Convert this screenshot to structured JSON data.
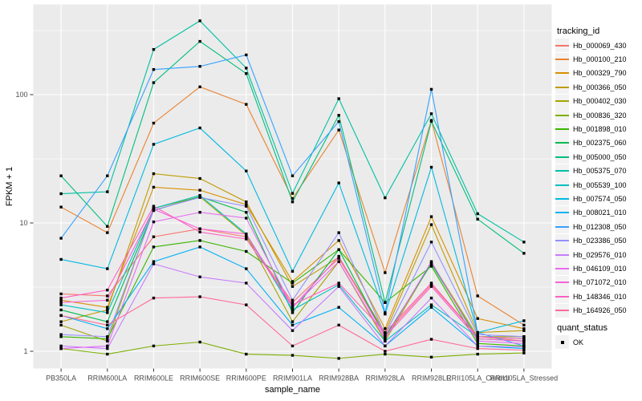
{
  "legend": {
    "tracking_title": "tracking_id",
    "quant_title": "quant_status",
    "quant_items": [
      {
        "label": "OK",
        "marker": "black-square"
      }
    ]
  },
  "chart_data": {
    "type": "line",
    "title": "",
    "xlabel": "sample_name",
    "ylabel": "FPKM + 1",
    "y_scale": "log10",
    "y_ticks": [
      100,
      10,
      1
    ],
    "y_minor": [
      316,
      31.6,
      3.16
    ],
    "ylim": [
      0.85,
      420
    ],
    "grid": true,
    "legend_position": "right",
    "panel_bg": "#EBEBEB",
    "grid_color": "#FFFFFF",
    "tick_color": "#333333",
    "point_shape": "filled-square",
    "point_color": "#000000",
    "categories": [
      "PB350LA",
      "RRIM600LA",
      "RRIM600LE",
      "RRIM600SE",
      "RRIM600PE",
      "RRIM901LA",
      "RRIM928BA",
      "RRIM928LA",
      "RRIM928LE",
      "RRII105LA_Control",
      "RRII105LA_Stressed"
    ],
    "series": [
      {
        "name": "Hb_000069_430",
        "color": "#F8766D",
        "values": [
          2.8,
          2.7,
          7.8,
          9.0,
          7.8,
          2.4,
          5.3,
          1.35,
          3.3,
          1.3,
          1.2
        ]
      },
      {
        "name": "Hb_000100_210",
        "color": "#EA8331",
        "values": [
          13.3,
          8.4,
          60,
          115,
          84,
          15.5,
          53,
          4.1,
          63,
          2.7,
          1.6
        ]
      },
      {
        "name": "Hb_000329_790",
        "color": "#D89000",
        "values": [
          2.5,
          2.2,
          19,
          18,
          13.9,
          3.5,
          7.3,
          1.5,
          11.2,
          1.8,
          1.5
        ]
      },
      {
        "name": "Hb_000366_050",
        "color": "#C09B00",
        "values": [
          1.7,
          2.1,
          24.2,
          22.2,
          14.6,
          3.2,
          5.4,
          1.4,
          9.7,
          1.4,
          1.45
        ]
      },
      {
        "name": "Hb_000402_030",
        "color": "#A3A500",
        "values": [
          1.6,
          1.2,
          13,
          16,
          8,
          1.7,
          5.0,
          1.2,
          4.9,
          1.3,
          1.3
        ]
      },
      {
        "name": "Hb_000836_320",
        "color": "#7CAE00",
        "values": [
          1.05,
          0.95,
          1.1,
          1.18,
          0.95,
          0.93,
          0.88,
          0.95,
          0.9,
          0.95,
          0.97
        ]
      },
      {
        "name": "Hb_001898_010",
        "color": "#39B600",
        "values": [
          1.3,
          1.25,
          6.5,
          7.3,
          6.0,
          3.4,
          6.2,
          2.4,
          4.6,
          1.15,
          1.1
        ]
      },
      {
        "name": "Hb_002375_060",
        "color": "#00BB4E",
        "values": [
          2.1,
          1.7,
          12.5,
          16,
          12.1,
          2.0,
          6.2,
          1.3,
          4.8,
          1.25,
          1.2
        ]
      },
      {
        "name": "Hb_005000_050",
        "color": "#00BF7D",
        "values": [
          23.3,
          9.4,
          124,
          260,
          146,
          14.6,
          69,
          2.4,
          62,
          10.7,
          5.8
        ]
      },
      {
        "name": "Hb_005375_070",
        "color": "#00C1A3",
        "values": [
          16.9,
          17.5,
          225,
          376,
          161,
          17,
          93,
          15.7,
          71,
          11.8,
          7.1
        ]
      },
      {
        "name": "Hb_005539_100",
        "color": "#00BFC4",
        "values": [
          2.3,
          2.0,
          13,
          16.4,
          8.2,
          2.1,
          3.3,
          1.2,
          2.3,
          1.3,
          1.25
        ]
      },
      {
        "name": "Hb_007574_050",
        "color": "#00BAE0",
        "values": [
          5.2,
          4.4,
          41,
          55,
          25.4,
          4.2,
          20.5,
          1.95,
          27.2,
          1.4,
          1.73
        ]
      },
      {
        "name": "Hb_008021_010",
        "color": "#00B0F6",
        "values": [
          1.9,
          1.5,
          5.0,
          6.5,
          4.4,
          1.6,
          2.2,
          1.1,
          2.2,
          1.1,
          1.05
        ]
      },
      {
        "name": "Hb_012308_050",
        "color": "#35A2FF",
        "values": [
          7.6,
          23.3,
          157,
          166,
          204,
          23.3,
          61.7,
          2.0,
          110,
          1.4,
          1.1
        ]
      },
      {
        "name": "Hb_023386_050",
        "color": "#9590FF",
        "values": [
          1.35,
          1.3,
          12.6,
          15.8,
          13.5,
          2.5,
          8.4,
          1.35,
          7.1,
          1.35,
          1.3
        ]
      },
      {
        "name": "Hb_029576_010",
        "color": "#C77CFF",
        "values": [
          1.1,
          1.05,
          4.8,
          3.8,
          3.4,
          1.45,
          3.2,
          1.1,
          2.6,
          1.1,
          1.08
        ]
      },
      {
        "name": "Hb_046109_010",
        "color": "#E76BF3",
        "values": [
          1.05,
          1.1,
          10.2,
          12.1,
          10.9,
          2.2,
          5.0,
          1.25,
          5.0,
          1.2,
          1.15
        ]
      },
      {
        "name": "Hb_071072_010",
        "color": "#FA62DB",
        "values": [
          2.4,
          2.5,
          12.8,
          9.0,
          8.2,
          2.2,
          5.5,
          1.3,
          3.2,
          1.25,
          1.2
        ]
      },
      {
        "name": "Hb_148346_010",
        "color": "#FF61C3",
        "values": [
          2.6,
          3.0,
          13.5,
          8.5,
          7.5,
          2.3,
          3.4,
          1.4,
          3.4,
          1.3,
          1.25
        ]
      },
      {
        "name": "Hb_164926_050",
        "color": "#FF6A98",
        "values": [
          1.9,
          1.6,
          2.6,
          2.66,
          2.3,
          1.1,
          1.6,
          1.0,
          1.24,
          1.05,
          1.02
        ]
      }
    ]
  }
}
